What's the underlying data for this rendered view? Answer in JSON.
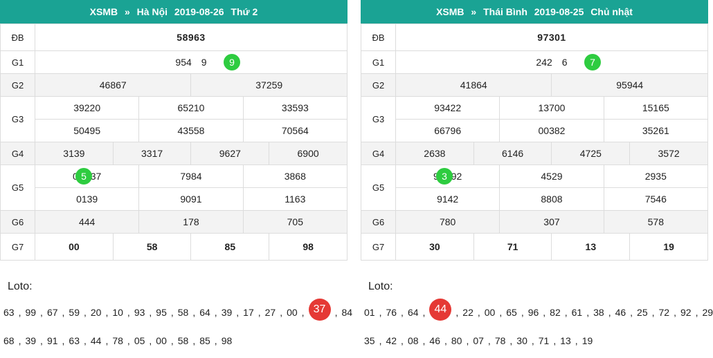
{
  "panels": [
    {
      "header": {
        "brand": "XSMB",
        "arrow": "»",
        "region": "Hà Nội",
        "date": "2019-08-26",
        "day": "Thứ 2"
      },
      "labels": {
        "db": "ĐB",
        "g1": "G1",
        "g2": "G2",
        "g3": "G3",
        "g4": "G4",
        "g5": "G5",
        "g6": "G6",
        "g7": "G7"
      },
      "db": "58963",
      "g1": {
        "pre": "954",
        "dot": "9",
        "post": "9"
      },
      "g2": [
        "46867",
        "37259"
      ],
      "g3": [
        "39220",
        "65210",
        "33593",
        "50495",
        "43558",
        "70564"
      ],
      "g4": [
        "3139",
        "3317",
        "9627",
        "6900"
      ],
      "g5": [
        {
          "pre": "0",
          "dot": "5",
          "post": "37"
        },
        "7984",
        "3868",
        "0139",
        "9091",
        "1163"
      ],
      "g6": [
        "444",
        "178",
        "705"
      ],
      "g7": [
        "00",
        "58",
        "85",
        "98"
      ],
      "loto_title": "Loto:",
      "loto_row1": [
        "63",
        "99",
        "67",
        "59",
        "20",
        "10",
        "93",
        "95",
        "58",
        "64",
        "39",
        "17",
        "27",
        "00",
        "37",
        "84"
      ],
      "loto_row1_hit": "37",
      "loto_row2": [
        "68",
        "39",
        "91",
        "63",
        "44",
        "78",
        "05",
        "00",
        "58",
        "85",
        "98"
      ]
    },
    {
      "header": {
        "brand": "XSMB",
        "arrow": "»",
        "region": "Thái Bình",
        "date": "2019-08-25",
        "day": "Chủ nhật"
      },
      "labels": {
        "db": "ĐB",
        "g1": "G1",
        "g2": "G2",
        "g3": "G3",
        "g4": "G4",
        "g5": "G5",
        "g6": "G6",
        "g7": "G7"
      },
      "db": "97301",
      "g1": {
        "pre": "242",
        "dot": "7",
        "post": "6"
      },
      "g2": [
        "41864",
        "95944"
      ],
      "g3": [
        "93422",
        "13700",
        "15165",
        "66796",
        "00382",
        "35261"
      ],
      "g4": [
        "2638",
        "6146",
        "4725",
        "3572"
      ],
      "g5": [
        {
          "pre": "9",
          "dot": "3",
          "post": "92"
        },
        "4529",
        "2935",
        "9142",
        "8808",
        "7546"
      ],
      "g6": [
        "780",
        "307",
        "578"
      ],
      "g7": [
        "30",
        "71",
        "13",
        "19"
      ],
      "loto_title": "Loto:",
      "loto_row1": [
        "01",
        "76",
        "64",
        "44",
        "22",
        "00",
        "65",
        "96",
        "82",
        "61",
        "38",
        "46",
        "25",
        "72",
        "92",
        "29"
      ],
      "loto_row1_hit": "44",
      "loto_row2": [
        "35",
        "42",
        "08",
        "46",
        "80",
        "07",
        "78",
        "30",
        "71",
        "13",
        "19"
      ]
    }
  ],
  "colors": {
    "header_bg": "#1aa394",
    "prize_red": "#e53935",
    "marker_green": "#2ecc40"
  }
}
